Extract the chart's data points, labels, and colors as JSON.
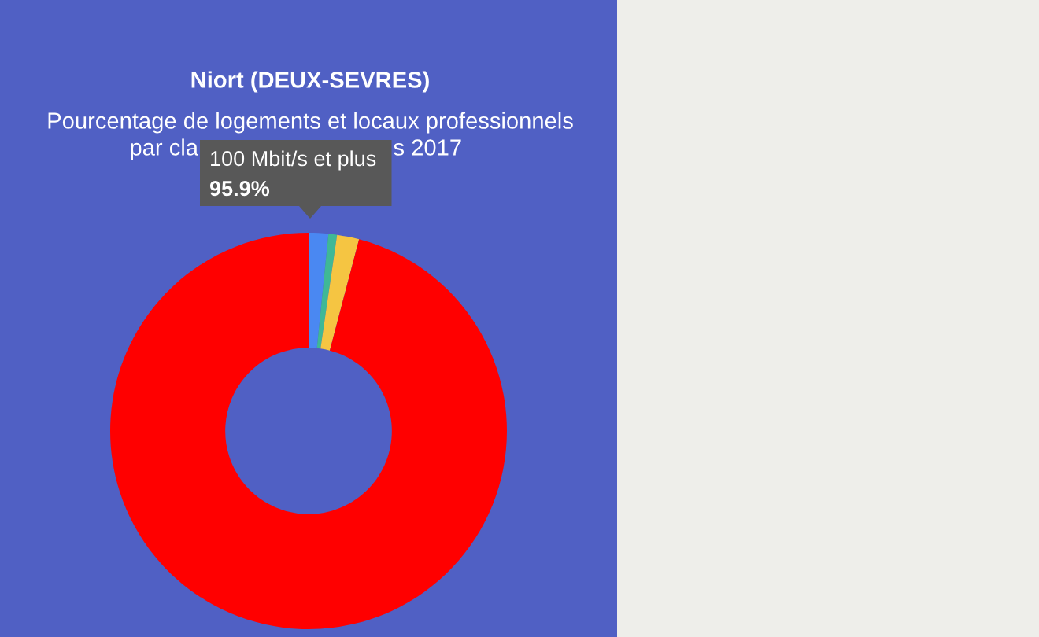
{
  "chart_data": {
    "type": "donut",
    "title": "Niort (DEUX-SEVRES)",
    "subtitle": "Pourcentage de logements et locaux professionnels",
    "annotations": [
      "par cla",
      "s 2017"
    ],
    "categories": [
      null,
      null,
      null,
      "100 Mbit/s et plus"
    ],
    "values": [
      1.6,
      0.7,
      1.8,
      95.9
    ],
    "colors": [
      "#4a88f2",
      "#3fb896",
      "#f5c542",
      "#ff0000"
    ],
    "value_labels": [
      null,
      null,
      null,
      "95.9%"
    ]
  }
}
